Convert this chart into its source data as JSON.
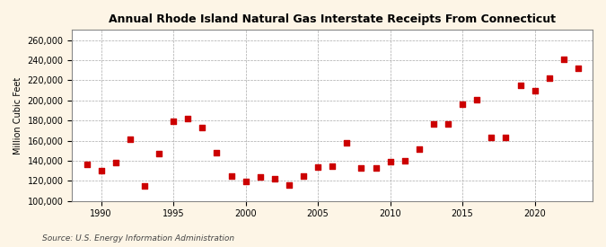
{
  "title": "Annual Rhode Island Natural Gas Interstate Receipts From Connecticut",
  "ylabel": "Million Cubic Feet",
  "source": "Source: U.S. Energy Information Administration",
  "background_color": "#fdf5e6",
  "plot_background_color": "#ffffff",
  "marker_color": "#cc0000",
  "marker": "s",
  "marker_size": 16,
  "grid_color": "#aaaaaa",
  "xlim": [
    1988,
    2024
  ],
  "ylim": [
    100000,
    270000
  ],
  "yticks": [
    100000,
    120000,
    140000,
    160000,
    180000,
    200000,
    220000,
    240000,
    260000
  ],
  "xticks": [
    1990,
    1995,
    2000,
    2005,
    2010,
    2015,
    2020
  ],
  "years": [
    1989,
    1990,
    1991,
    1992,
    1993,
    1994,
    1995,
    1996,
    1997,
    1998,
    1999,
    2000,
    2001,
    2002,
    2003,
    2004,
    2005,
    2006,
    2007,
    2008,
    2009,
    2010,
    2011,
    2012,
    2013,
    2014,
    2015,
    2016,
    2017,
    2018,
    2019,
    2020,
    2021,
    2022,
    2023
  ],
  "values": [
    136000,
    130000,
    138000,
    161000,
    115000,
    147000,
    179000,
    182000,
    173000,
    148000,
    125000,
    119000,
    124000,
    122000,
    116000,
    125000,
    134000,
    135000,
    158000,
    133000,
    133000,
    139000,
    140000,
    152000,
    177000,
    177000,
    196000,
    201000,
    163000,
    163000,
    215000,
    210000,
    222000,
    241000,
    232000
  ]
}
